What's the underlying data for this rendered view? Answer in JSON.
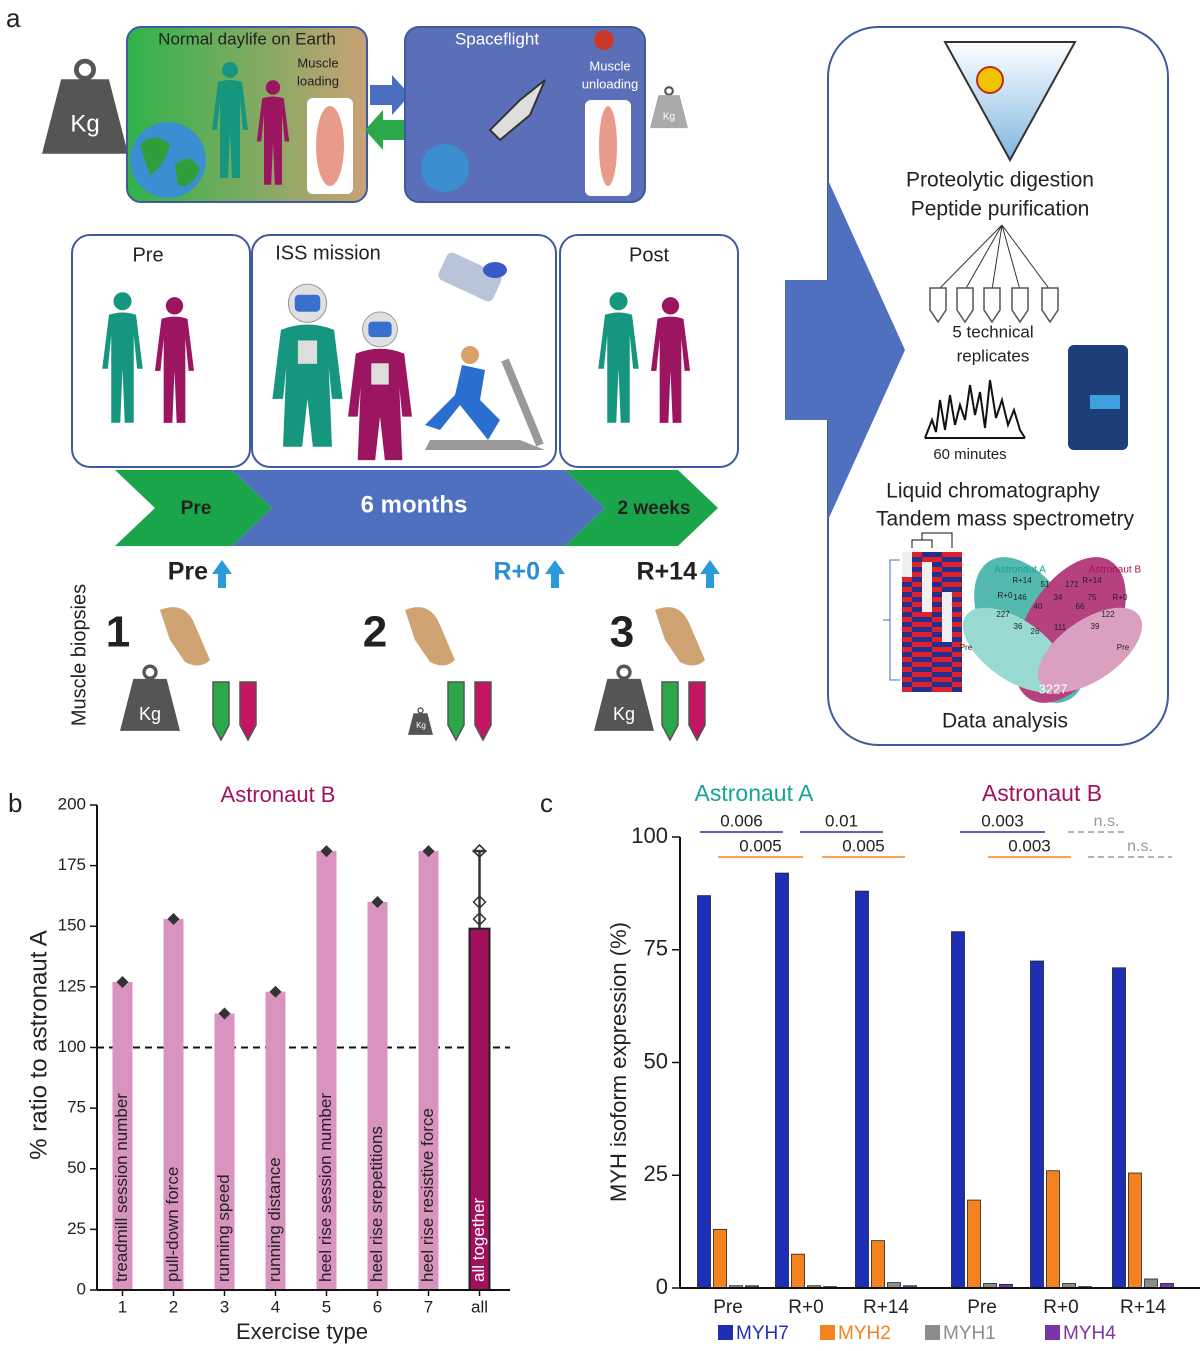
{
  "panel_labels": [
    "a",
    "b",
    "c"
  ],
  "panel_a": {
    "earth": {
      "title": "Normal daylife on Earth",
      "muscle": [
        "Muscle",
        "loading"
      ],
      "weight": "Kg"
    },
    "space": {
      "title": "Spaceflight",
      "muscle": [
        "Muscle",
        "unloading"
      ],
      "weight": "Kg"
    },
    "phases": [
      "Pre",
      "ISS mission",
      "Post"
    ],
    "timeline": [
      "Pre",
      "6 months",
      "2 weeks"
    ],
    "biopsies": {
      "label": "Muscle biopsies",
      "numbers": [
        "1",
        "2",
        "3"
      ],
      "timepoints": [
        "Pre",
        "R+0",
        "R+14"
      ],
      "weight": "Kg"
    },
    "workflow": {
      "digestion": [
        "Proteolytic digestion",
        "Peptide purification"
      ],
      "replicates": [
        "5 technical",
        "replicates"
      ],
      "gradient": "60 minutes",
      "ms": [
        "Liquid chromatography",
        "Tandem mass spectrometry"
      ],
      "analysis": "Data analysis",
      "venn": {
        "astronauts": [
          "Astronaut A",
          "Astronaut B"
        ],
        "timepoints": [
          "R+14",
          "R+0",
          "Pre"
        ],
        "counts": [
          "51",
          "146",
          "40",
          "227",
          "36",
          "26",
          "171",
          "34",
          "66",
          "75",
          "111",
          "39",
          "122",
          "3227"
        ]
      }
    }
  },
  "chart_data": [
    {
      "type": "bar",
      "title": "Astronaut B",
      "x_label": "Exercise type",
      "y_label": "% ratio to astronaut A",
      "categories": [
        "1",
        "2",
        "3",
        "4",
        "5",
        "6",
        "7",
        "all"
      ],
      "values": [
        127,
        153,
        114,
        123,
        181,
        160,
        181,
        149
      ],
      "errors": [
        null,
        null,
        null,
        null,
        null,
        null,
        null,
        32
      ],
      "bar_labels": [
        "treadmill session number",
        "pull-down force",
        "running speed",
        "running distance",
        "heel rise session number",
        "heel rise srepetitions",
        "heel rise resistive force",
        "all together"
      ],
      "colors": [
        "#d993bf",
        "#d993bf",
        "#d993bf",
        "#d993bf",
        "#d993bf",
        "#d993bf",
        "#d993bf",
        "#a0105c"
      ],
      "reference_line": 100,
      "ylim": [
        0,
        200
      ],
      "yticks": [
        0,
        25,
        50,
        75,
        100,
        125,
        150,
        175,
        200
      ]
    },
    {
      "type": "grouped_bar",
      "y_label": "MYH isoform expression (%)",
      "groups": [
        {
          "name": "Astronaut A",
          "color": "#17a398"
        },
        {
          "name": "Astronaut B",
          "color": "#a3125f"
        }
      ],
      "categories": [
        "Pre",
        "R+0",
        "R+14",
        "Pre",
        "R+0",
        "R+14"
      ],
      "series": [
        {
          "name": "MYH7",
          "color": "#1f2fb5",
          "values": [
            87,
            92,
            88,
            79,
            72.5,
            71
          ]
        },
        {
          "name": "MYH2",
          "color": "#f58220",
          "values": [
            13,
            7.5,
            10.5,
            19.5,
            26,
            25.5
          ]
        },
        {
          "name": "MYH1",
          "color": "#8c8c8c",
          "values": [
            0.5,
            0.5,
            1.2,
            1,
            1,
            2
          ]
        },
        {
          "name": "MYH4",
          "color": "#7a35a8",
          "values": [
            0.5,
            0.3,
            0.5,
            0.8,
            0.3,
            1
          ]
        }
      ],
      "annotations": [
        {
          "text": "0.006",
          "color": "#2a2ab0"
        },
        {
          "text": "0.01",
          "color": "#2a2ab0"
        },
        {
          "text": "0.005",
          "color": "#f58220"
        },
        {
          "text": "0.005",
          "color": "#f58220"
        },
        {
          "text": "0.003",
          "color": "#2a2ab0"
        },
        {
          "text": "0.003",
          "color": "#f58220"
        },
        {
          "text": "n.s.",
          "color": "#9a9a9a"
        },
        {
          "text": "n.s.",
          "color": "#9a9a9a"
        }
      ],
      "ylim": [
        0,
        100
      ],
      "yticks": [
        0,
        25,
        50,
        75,
        100
      ],
      "legend": "bottom"
    }
  ]
}
